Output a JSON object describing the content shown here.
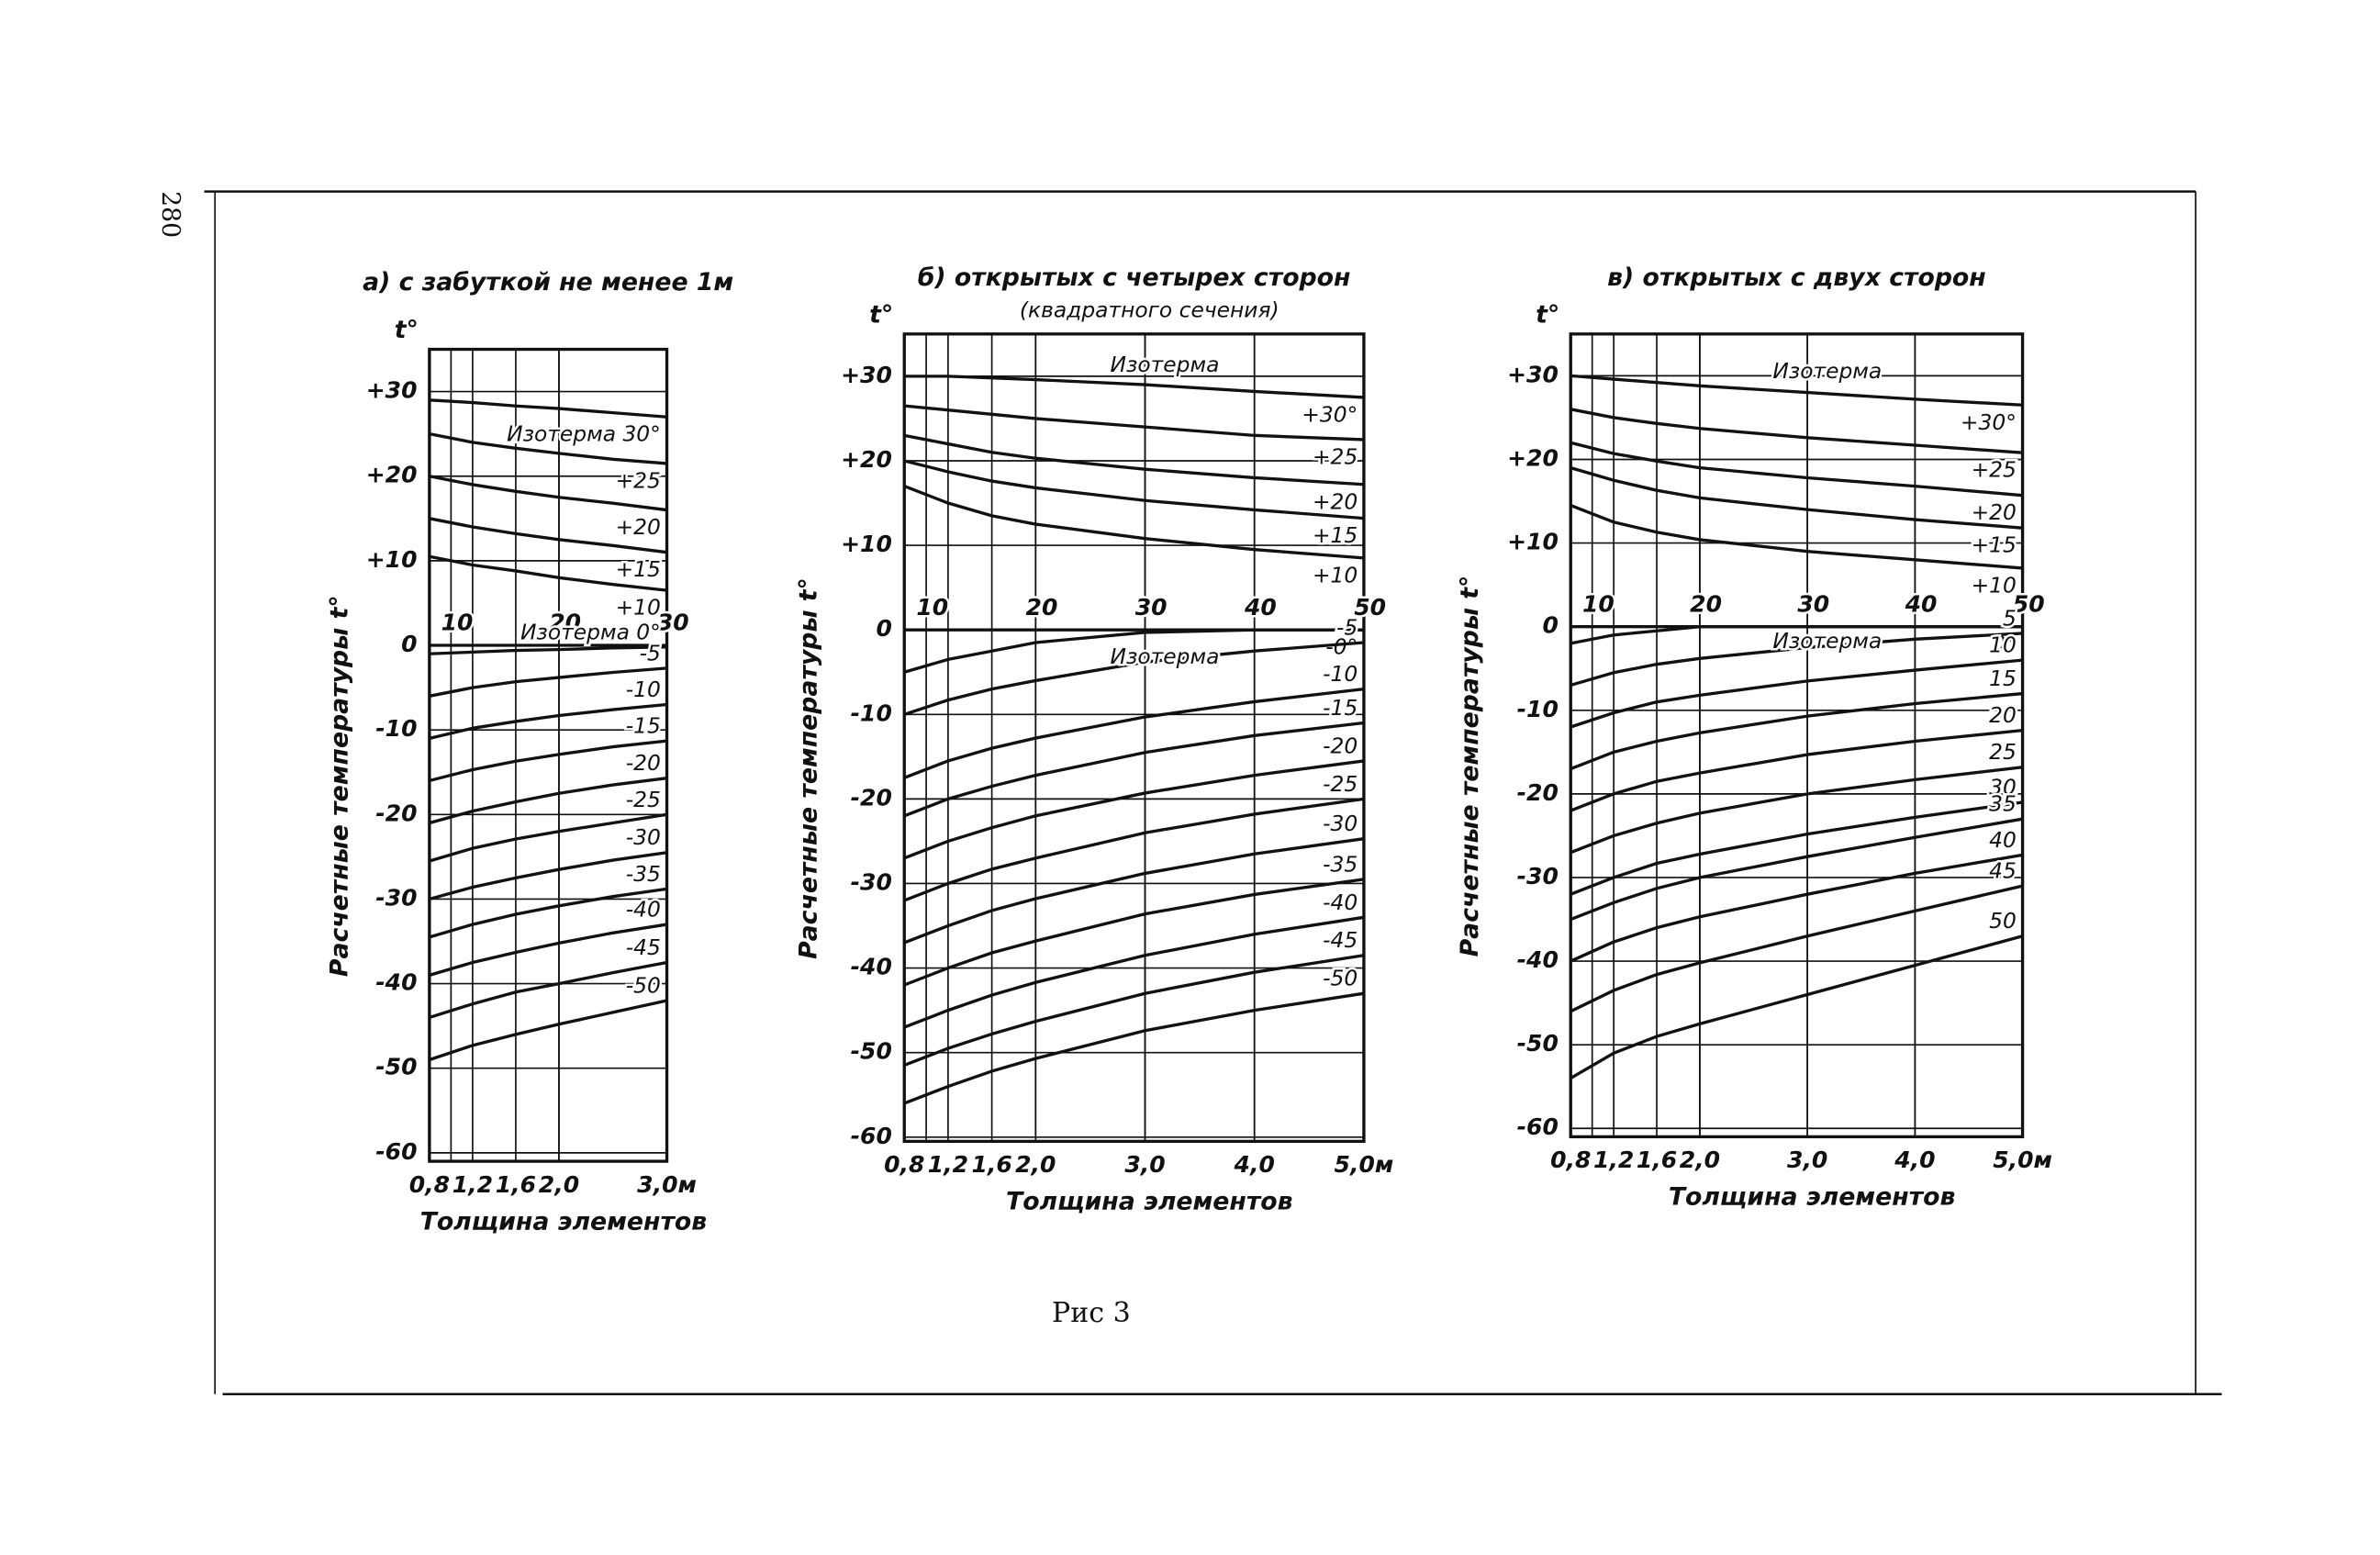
{
  "page_number": "280",
  "caption": "Рис 3",
  "chart_data": [
    {
      "type": "line",
      "title": "а) с забуткой не менее 1м",
      "y_top_label": "t°",
      "ylabel": "Расчетные температуры t°",
      "xlabel": "Толщина элементов",
      "color": "#111111",
      "grid": true,
      "x": [
        0.8,
        1.2,
        1.6,
        2.0,
        2.5,
        3.0
      ],
      "xlim": [
        0.8,
        3.0
      ],
      "xticks": [
        {
          "value": 0.8,
          "label": "0,8"
        },
        {
          "value": 1.2,
          "label": "1,2"
        },
        {
          "value": 1.6,
          "label": "1,6"
        },
        {
          "value": 2.0,
          "label": "2,0"
        },
        {
          "value": 3.0,
          "label": "3,0м"
        }
      ],
      "x2lim": [
        8,
        30
      ],
      "x2ticks": [
        10,
        20,
        30
      ],
      "ylim": [
        -61,
        35
      ],
      "yticks": [
        {
          "value": 30,
          "label": "+30"
        },
        {
          "value": 20,
          "label": "+20"
        },
        {
          "value": 10,
          "label": "+10"
        },
        0,
        -10,
        -20,
        -30,
        -40,
        -50,
        -60
      ],
      "series": [
        {
          "name": "Изотерма 30°",
          "values": [
            29,
            28.7,
            28.3,
            28,
            27.5,
            27
          ]
        },
        {
          "name": "+25",
          "values": [
            25,
            24,
            23.3,
            22.7,
            22,
            21.5
          ]
        },
        {
          "name": "+20",
          "values": [
            20,
            19,
            18.2,
            17.5,
            16.8,
            16
          ]
        },
        {
          "name": "+15",
          "values": [
            15,
            14,
            13.2,
            12.5,
            11.8,
            11
          ]
        },
        {
          "name": "+10",
          "values": [
            10.5,
            9.5,
            8.8,
            8,
            7.2,
            6.5
          ]
        },
        {
          "name": "Изотерма 0°",
          "values": [
            -1,
            -0.8,
            -0.6,
            -0.5,
            -0.3,
            -0.2
          ]
        },
        {
          "name": "-5",
          "values": [
            -6,
            -5,
            -4.3,
            -3.8,
            -3.2,
            -2.7
          ]
        },
        {
          "name": "-10",
          "values": [
            -11,
            -9.8,
            -9,
            -8.3,
            -7.6,
            -7
          ]
        },
        {
          "name": "-15",
          "values": [
            -16,
            -14.7,
            -13.7,
            -12.9,
            -12,
            -11.3
          ]
        },
        {
          "name": "-20",
          "values": [
            -21,
            -19.6,
            -18.5,
            -17.5,
            -16.5,
            -15.7
          ]
        },
        {
          "name": "-25",
          "values": [
            -25.5,
            -24,
            -22.9,
            -22,
            -21,
            -20
          ]
        },
        {
          "name": "-30",
          "values": [
            -30,
            -28.6,
            -27.5,
            -26.5,
            -25.4,
            -24.5
          ]
        },
        {
          "name": "-35",
          "values": [
            -34.5,
            -33,
            -31.8,
            -30.8,
            -29.7,
            -28.8
          ]
        },
        {
          "name": "-40",
          "values": [
            -39,
            -37.5,
            -36.3,
            -35.2,
            -34,
            -33
          ]
        },
        {
          "name": "-45",
          "values": [
            -44,
            -42.4,
            -41,
            -40,
            -38.7,
            -37.5
          ]
        },
        {
          "name": "-50",
          "values": [
            -49,
            -47.3,
            -46,
            -44.8,
            -43.4,
            -42
          ]
        }
      ]
    },
    {
      "type": "line",
      "title": "б) открытых с четырех сторон",
      "subtitle": "(квадратного сечения)",
      "y_top_label": "t°",
      "ylabel": "Расчетные температуры t°",
      "xlabel": "Толщина элементов",
      "color": "#111111",
      "grid": true,
      "annotations": [
        "Изотерма",
        "Изотерма"
      ],
      "x": [
        0.8,
        1.2,
        1.6,
        2.0,
        3.0,
        4.0,
        5.0
      ],
      "xlim": [
        0.8,
        5.0
      ],
      "xticks": [
        {
          "value": 0.8,
          "label": "0,8"
        },
        {
          "value": 1.2,
          "label": "1,2"
        },
        {
          "value": 1.6,
          "label": "1,6"
        },
        {
          "value": 2.0,
          "label": "2,0"
        },
        {
          "value": 3.0,
          "label": "3,0"
        },
        {
          "value": 4.0,
          "label": "4,0"
        },
        {
          "value": 5.0,
          "label": "5,0м"
        }
      ],
      "x2lim": [
        8,
        50
      ],
      "x2ticks": [
        10,
        20,
        30,
        40,
        50
      ],
      "ylim": [
        -60.5,
        35
      ],
      "yticks": [
        {
          "value": 30,
          "label": "+30"
        },
        {
          "value": 20,
          "label": "+20"
        },
        {
          "value": 10,
          "label": "+10"
        },
        0,
        -10,
        -20,
        -30,
        -40,
        -50,
        -60
      ],
      "series": [
        {
          "name": "+30°",
          "values": [
            30,
            30,
            29.8,
            29.6,
            29,
            28.2,
            27.5
          ]
        },
        {
          "name": "+25",
          "values": [
            26.5,
            26,
            25.5,
            25,
            24,
            23,
            22.5
          ]
        },
        {
          "name": "+20",
          "values": [
            23,
            22,
            21,
            20.3,
            19,
            18,
            17.2
          ]
        },
        {
          "name": "+15",
          "values": [
            20,
            18.7,
            17.6,
            16.8,
            15.3,
            14.2,
            13.2
          ]
        },
        {
          "name": "+10",
          "values": [
            17,
            15,
            13.5,
            12.5,
            10.8,
            9.5,
            8.5
          ]
        },
        {
          "name": "-0°",
          "values": [
            -5,
            -3.5,
            -2.5,
            -1.5,
            -0.3,
            0,
            0
          ]
        },
        {
          "name": "-5",
          "values": [
            -10,
            -8.3,
            -7,
            -6,
            -3.8,
            -2.5,
            -1.5
          ]
        },
        {
          "name": "-10",
          "values": [
            -17.5,
            -15.5,
            -14,
            -12.8,
            -10.3,
            -8.5,
            -7
          ]
        },
        {
          "name": "-15",
          "values": [
            -22,
            -20,
            -18.5,
            -17.2,
            -14.5,
            -12.5,
            -11
          ]
        },
        {
          "name": "-20",
          "values": [
            -27,
            -25,
            -23.4,
            -22,
            -19.3,
            -17.2,
            -15.5
          ]
        },
        {
          "name": "-25",
          "values": [
            -32,
            -30,
            -28.3,
            -27,
            -24,
            -21.8,
            -20
          ]
        },
        {
          "name": "-30",
          "values": [
            -37,
            -35,
            -33.2,
            -31.8,
            -28.8,
            -26.5,
            -24.7
          ]
        },
        {
          "name": "-35",
          "values": [
            -42,
            -40,
            -38.2,
            -36.8,
            -33.6,
            -31.3,
            -29.5
          ]
        },
        {
          "name": "-40",
          "values": [
            -47,
            -45,
            -43.2,
            -41.7,
            -38.5,
            -36,
            -34
          ]
        },
        {
          "name": "-45",
          "values": [
            -51.5,
            -49.5,
            -47.8,
            -46.3,
            -43,
            -40.5,
            -38.5
          ]
        },
        {
          "name": "-50",
          "values": [
            -56,
            -54,
            -52.2,
            -50.7,
            -47.4,
            -45,
            -43
          ]
        }
      ]
    },
    {
      "type": "line",
      "title": "в) открытых с двух сторон",
      "y_top_label": "t°",
      "ylabel": "Расчетные температуры t°",
      "xlabel": "Толщина элементов",
      "color": "#111111",
      "grid": true,
      "annotations": [
        "Изотерма",
        "Изотерма"
      ],
      "x": [
        0.8,
        1.2,
        1.6,
        2.0,
        3.0,
        4.0,
        5.0
      ],
      "xlim": [
        0.8,
        5.0
      ],
      "xticks": [
        {
          "value": 0.8,
          "label": "0,8"
        },
        {
          "value": 1.2,
          "label": "1,2"
        },
        {
          "value": 1.6,
          "label": "1,6"
        },
        {
          "value": 2.0,
          "label": "2,0"
        },
        {
          "value": 3.0,
          "label": "3,0"
        },
        {
          "value": 4.0,
          "label": "4,0"
        },
        {
          "value": 5.0,
          "label": "5,0м"
        }
      ],
      "x2lim": [
        8,
        50
      ],
      "x2ticks": [
        10,
        20,
        30,
        40,
        50
      ],
      "ylim": [
        -61,
        35
      ],
      "yticks": [
        {
          "value": 30,
          "label": "+30"
        },
        {
          "value": 20,
          "label": "+20"
        },
        {
          "value": 10,
          "label": "+10"
        },
        0,
        -10,
        -20,
        -30,
        -40,
        -50,
        -60
      ],
      "series": [
        {
          "name": "+30°",
          "values": [
            30,
            29.6,
            29.2,
            28.8,
            28,
            27.2,
            26.5
          ]
        },
        {
          "name": "+25",
          "values": [
            26,
            25,
            24.3,
            23.7,
            22.6,
            21.7,
            20.8
          ]
        },
        {
          "name": "+20",
          "values": [
            22,
            20.7,
            19.8,
            19,
            17.8,
            16.8,
            15.7
          ]
        },
        {
          "name": "+15",
          "values": [
            19,
            17.5,
            16.3,
            15.4,
            14,
            12.8,
            11.8
          ]
        },
        {
          "name": "+10",
          "values": [
            14.5,
            12.5,
            11.3,
            10.4,
            9,
            8,
            7
          ]
        },
        {
          "name": "0°",
          "values": [
            -2,
            -1,
            -0.5,
            0,
            0,
            0,
            0
          ]
        },
        {
          "name": "5",
          "values": [
            -7,
            -5.5,
            -4.5,
            -3.8,
            -2.5,
            -1.5,
            -0.8
          ]
        },
        {
          "name": "10",
          "values": [
            -12,
            -10.3,
            -9,
            -8.2,
            -6.5,
            -5.2,
            -4
          ]
        },
        {
          "name": "15",
          "values": [
            -17,
            -15,
            -13.7,
            -12.7,
            -10.7,
            -9.2,
            -8
          ]
        },
        {
          "name": "20",
          "values": [
            -22,
            -20,
            -18.5,
            -17.5,
            -15.3,
            -13.7,
            -12.4
          ]
        },
        {
          "name": "25",
          "values": [
            -27,
            -25,
            -23.5,
            -22.3,
            -20,
            -18.3,
            -16.8
          ]
        },
        {
          "name": "30",
          "values": [
            -32,
            -30,
            -28.3,
            -27.2,
            -24.8,
            -22.8,
            -21
          ]
        },
        {
          "name": "35",
          "values": [
            -35,
            -33,
            -31.3,
            -30,
            -27.5,
            -25.2,
            -23
          ]
        },
        {
          "name": "40",
          "values": [
            -40,
            -37.7,
            -36,
            -34.7,
            -32,
            -29.5,
            -27.3
          ]
        },
        {
          "name": "45",
          "values": [
            -46,
            -43.5,
            -41.6,
            -40.2,
            -37,
            -34,
            -31
          ]
        },
        {
          "name": "50",
          "values": [
            -54,
            -51,
            -49,
            -47.5,
            -44,
            -40.5,
            -37
          ]
        }
      ]
    }
  ]
}
